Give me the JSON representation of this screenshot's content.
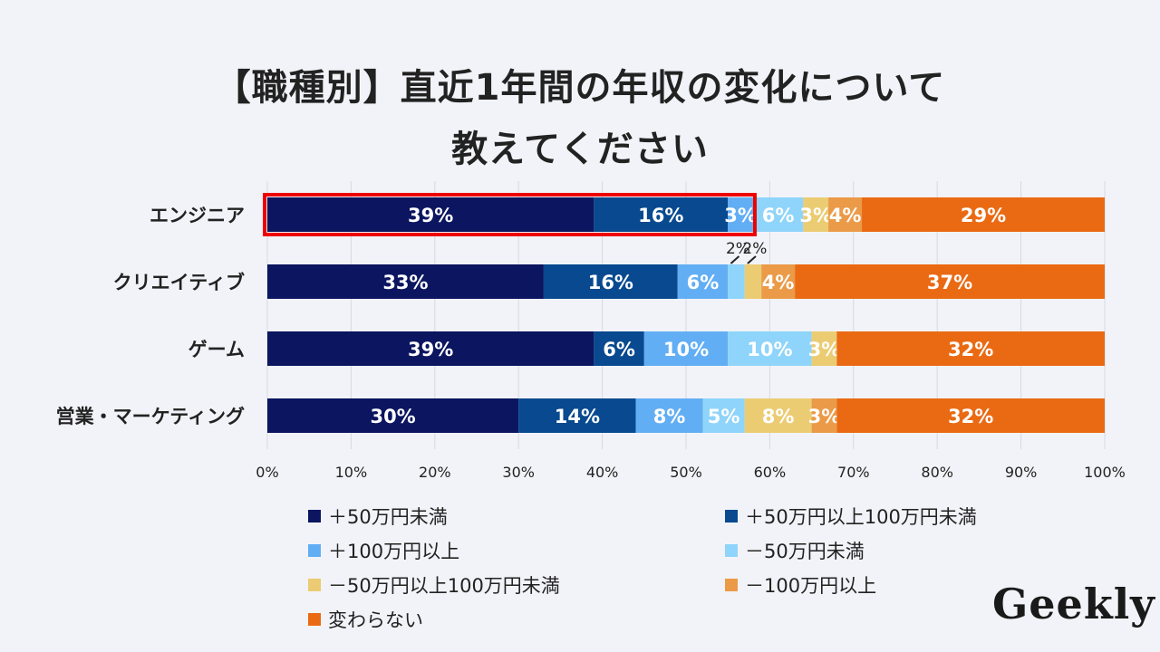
{
  "title_line1": "【職種別】直近1年間の年収の変化について",
  "title_line2": "教えてください",
  "logo_text": "Geekly",
  "chart_data": {
    "type": "bar",
    "orientation": "horizontal",
    "stacked": true,
    "categories": [
      "エンジニア",
      "クリエイティブ",
      "ゲーム",
      "営業・マーケティング"
    ],
    "series": [
      {
        "name": "＋50万円未満",
        "color": "#0b1560",
        "values": [
          39,
          33,
          39,
          30
        ],
        "labels": [
          "39%",
          "33%",
          "39%",
          "30%"
        ]
      },
      {
        "name": "＋50万円以上100万円未満",
        "color": "#08498f",
        "values": [
          16,
          16,
          6,
          14
        ],
        "labels": [
          "16%",
          "16%",
          "6%",
          "14%"
        ]
      },
      {
        "name": "＋100万円以上",
        "color": "#62aef4",
        "values": [
          3,
          6,
          10,
          8
        ],
        "labels": [
          "3%",
          "6%",
          "10%",
          "8%"
        ]
      },
      {
        "name": "－50万円未満",
        "color": "#8fd4fa",
        "values": [
          6,
          2,
          10,
          5
        ],
        "labels": [
          "6%",
          "2%",
          "10%",
          "5%"
        ]
      },
      {
        "name": "－50万円以上100万円未満",
        "color": "#ebcc72",
        "values": [
          3,
          2,
          3,
          8
        ],
        "labels": [
          "3%",
          "2%",
          "3%",
          "8%"
        ]
      },
      {
        "name": "－100万円以上",
        "color": "#eb9a48",
        "values": [
          4,
          4,
          0,
          3
        ],
        "labels": [
          "4%",
          "4%",
          "",
          "3%"
        ]
      },
      {
        "name": "変わらない",
        "color": "#ea6a13",
        "values": [
          29,
          37,
          32,
          32
        ],
        "labels": [
          "29%",
          "37%",
          "32%",
          "32%"
        ]
      }
    ],
    "x_ticks": [
      "0%",
      "10%",
      "20%",
      "30%",
      "40%",
      "50%",
      "60%",
      "70%",
      "80%",
      "90%",
      "100%"
    ],
    "xlim": [
      0,
      100
    ],
    "callouts": [
      {
        "category": "クリエイティブ",
        "series": "－50万円未満",
        "label": "2%"
      },
      {
        "category": "クリエイティブ",
        "series": "－50万円以上100万円未満",
        "label": "2%"
      }
    ],
    "highlight": {
      "category": "エンジニア",
      "upto_percent": 58,
      "color": "#ee0000"
    },
    "legend_position": "bottom"
  }
}
